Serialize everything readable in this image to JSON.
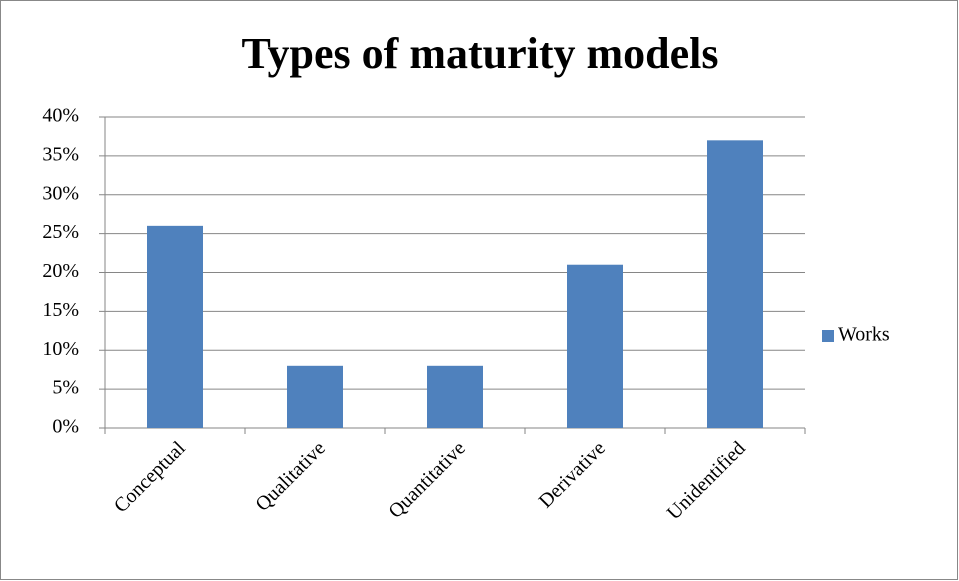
{
  "chart_data": {
    "type": "bar",
    "title": "Types of maturity models",
    "categories": [
      "Conceptual",
      "Qualitative",
      "Quantitative",
      "Derivative",
      "Unidentified"
    ],
    "series": [
      {
        "name": "Works",
        "color": "#4f81bd",
        "values": [
          26,
          8,
          8,
          21,
          37
        ]
      }
    ],
    "ylim": [
      0,
      40
    ],
    "yticks": [
      {
        "value": 0,
        "label": "0%"
      },
      {
        "value": 5,
        "label": "5%"
      },
      {
        "value": 10,
        "label": "10%"
      },
      {
        "value": 15,
        "label": "15%"
      },
      {
        "value": 20,
        "label": "20%"
      },
      {
        "value": 25,
        "label": "25%"
      },
      {
        "value": 30,
        "label": "30%"
      },
      {
        "value": 35,
        "label": "35%"
      },
      {
        "value": 40,
        "label": "40%"
      }
    ],
    "grid": true,
    "legend": "right"
  }
}
